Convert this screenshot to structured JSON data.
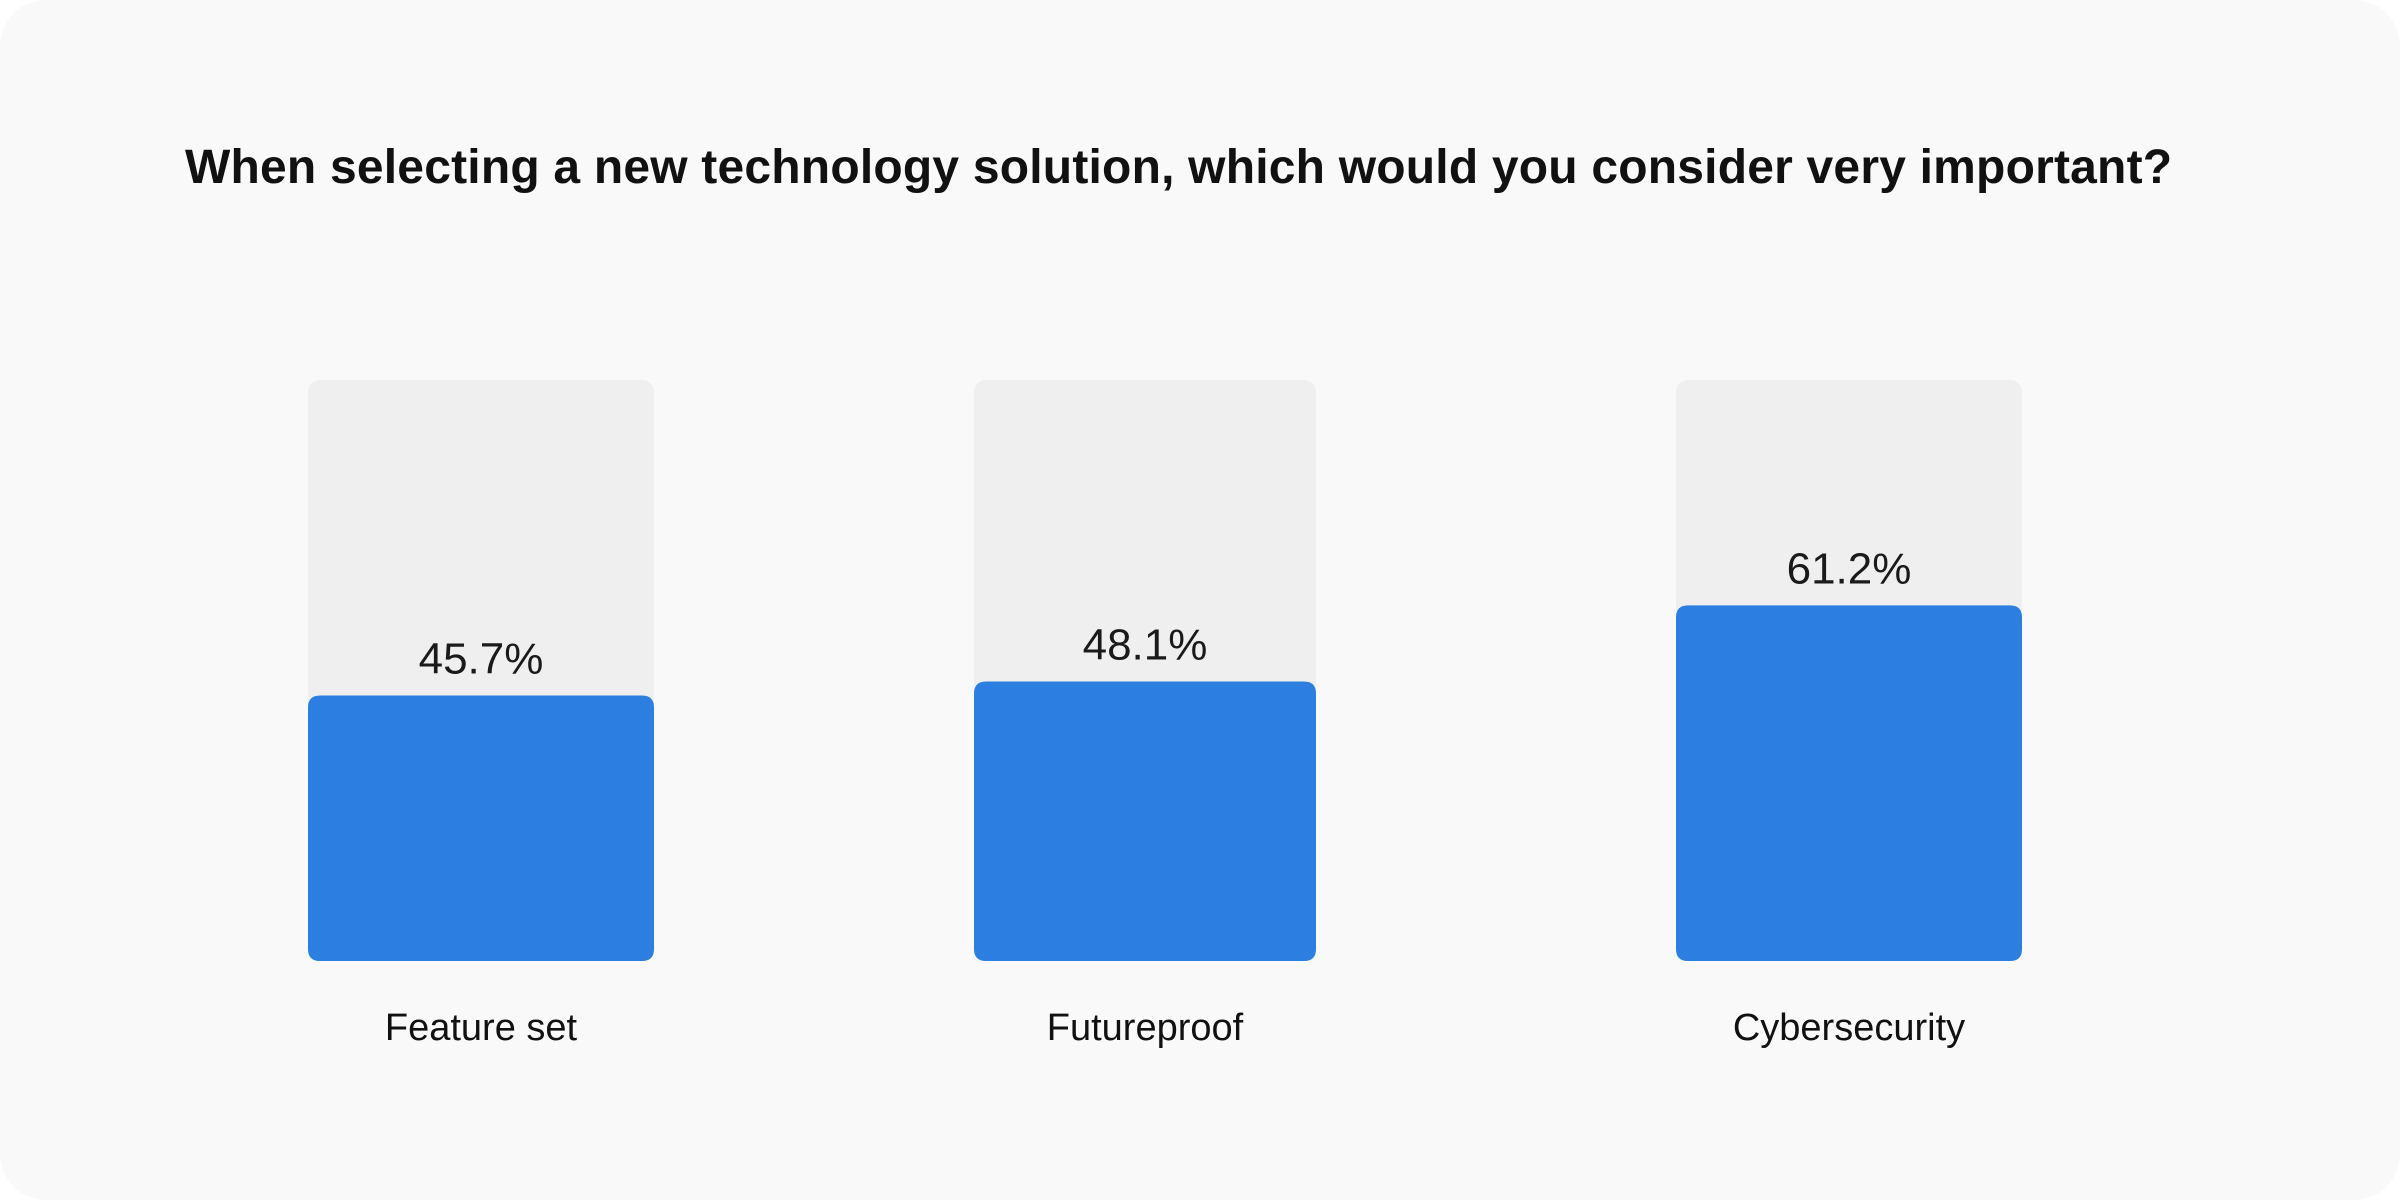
{
  "chart_data": {
    "type": "bar",
    "title": "When selecting a new technology solution, which would you consider very important?",
    "categories": [
      "Feature set",
      "Futureproof",
      "Cybersecurity"
    ],
    "values": [
      45.7,
      48.1,
      61.2
    ],
    "value_labels": [
      "45.7%",
      "48.1%",
      "61.2%"
    ],
    "ylim": [
      0,
      100
    ],
    "grid": false,
    "colors": {
      "bar": "#2c7fe1",
      "track": "#efefef",
      "background": "#f9f9f9"
    }
  }
}
